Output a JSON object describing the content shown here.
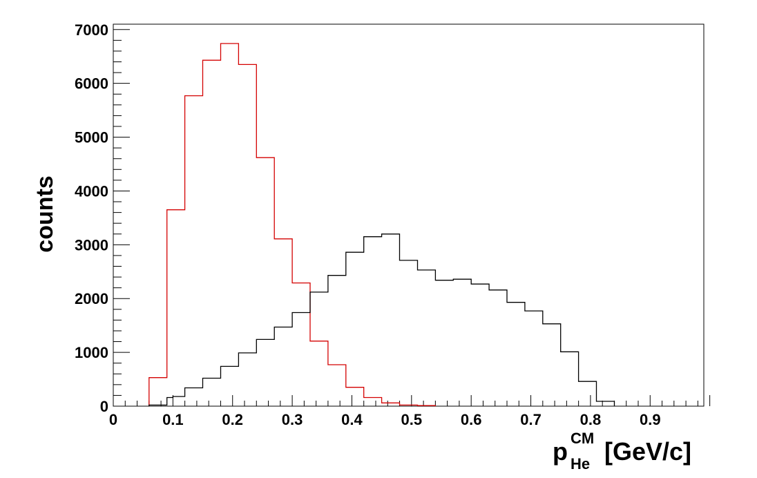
{
  "chart_data": {
    "type": "histogram",
    "ylabel": "counts",
    "xlabel": {
      "main": "p",
      "superscript": "CM",
      "subscript": "He",
      "unit": "[GeV/c]"
    },
    "xlim": [
      0,
      0.99
    ],
    "ylim": [
      0,
      7100
    ],
    "bin_width": 0.03,
    "x_ticks": [
      {
        "value": 0,
        "label": "0"
      },
      {
        "value": 0.1,
        "label": "0.1"
      },
      {
        "value": 0.2,
        "label": "0.2"
      },
      {
        "value": 0.3,
        "label": "0.3"
      },
      {
        "value": 0.4,
        "label": "0.4"
      },
      {
        "value": 0.5,
        "label": "0.5"
      },
      {
        "value": 0.6,
        "label": "0.6"
      },
      {
        "value": 0.7,
        "label": "0.7"
      },
      {
        "value": 0.8,
        "label": "0.8"
      },
      {
        "value": 0.9,
        "label": "0.9"
      }
    ],
    "y_ticks": [
      {
        "value": 0,
        "label": "0"
      },
      {
        "value": 1000,
        "label": "1000"
      },
      {
        "value": 2000,
        "label": "2000"
      },
      {
        "value": 3000,
        "label": "3000"
      },
      {
        "value": 4000,
        "label": "4000"
      },
      {
        "value": 5000,
        "label": "5000"
      },
      {
        "value": 6000,
        "label": "6000"
      },
      {
        "value": 7000,
        "label": "7000"
      }
    ],
    "x_minor_step": 0.02,
    "y_minor_step": 200,
    "grid": false,
    "series": [
      {
        "color": "#d40000",
        "bins": [
          {
            "low": 0.06,
            "high": 0.09,
            "count": 530
          },
          {
            "low": 0.09,
            "high": 0.12,
            "count": 3650
          },
          {
            "low": 0.12,
            "high": 0.15,
            "count": 5770
          },
          {
            "low": 0.15,
            "high": 0.18,
            "count": 6430
          },
          {
            "low": 0.18,
            "high": 0.21,
            "count": 6740
          },
          {
            "low": 0.21,
            "high": 0.24,
            "count": 6350
          },
          {
            "low": 0.24,
            "high": 0.27,
            "count": 4620
          },
          {
            "low": 0.27,
            "high": 0.3,
            "count": 3110
          },
          {
            "low": 0.3,
            "high": 0.33,
            "count": 2290
          },
          {
            "low": 0.33,
            "high": 0.36,
            "count": 1210
          },
          {
            "low": 0.36,
            "high": 0.39,
            "count": 770
          },
          {
            "low": 0.39,
            "high": 0.42,
            "count": 350
          },
          {
            "low": 0.42,
            "high": 0.45,
            "count": 160
          },
          {
            "low": 0.45,
            "high": 0.48,
            "count": 60
          },
          {
            "low": 0.48,
            "high": 0.51,
            "count": 20
          },
          {
            "low": 0.51,
            "high": 0.54,
            "count": 10
          }
        ]
      },
      {
        "color": "#000000",
        "bins": [
          {
            "low": 0.06,
            "high": 0.09,
            "count": 20
          },
          {
            "low": 0.09,
            "high": 0.1,
            "count": 160
          },
          {
            "low": 0.1,
            "high": 0.12,
            "count": 180
          },
          {
            "low": 0.12,
            "high": 0.15,
            "count": 340
          },
          {
            "low": 0.15,
            "high": 0.18,
            "count": 520
          },
          {
            "low": 0.18,
            "high": 0.21,
            "count": 740
          },
          {
            "low": 0.21,
            "high": 0.24,
            "count": 990
          },
          {
            "low": 0.24,
            "high": 0.27,
            "count": 1240
          },
          {
            "low": 0.27,
            "high": 0.3,
            "count": 1470
          },
          {
            "low": 0.3,
            "high": 0.33,
            "count": 1740
          },
          {
            "low": 0.33,
            "high": 0.36,
            "count": 2120
          },
          {
            "low": 0.36,
            "high": 0.39,
            "count": 2430
          },
          {
            "low": 0.39,
            "high": 0.42,
            "count": 2860
          },
          {
            "low": 0.42,
            "high": 0.45,
            "count": 3150
          },
          {
            "low": 0.45,
            "high": 0.48,
            "count": 3200
          },
          {
            "low": 0.48,
            "high": 0.51,
            "count": 2710
          },
          {
            "low": 0.51,
            "high": 0.54,
            "count": 2530
          },
          {
            "low": 0.54,
            "high": 0.57,
            "count": 2340
          },
          {
            "low": 0.57,
            "high": 0.6,
            "count": 2360
          },
          {
            "low": 0.6,
            "high": 0.63,
            "count": 2270
          },
          {
            "low": 0.63,
            "high": 0.66,
            "count": 2160
          },
          {
            "low": 0.66,
            "high": 0.69,
            "count": 1930
          },
          {
            "low": 0.69,
            "high": 0.72,
            "count": 1770
          },
          {
            "low": 0.72,
            "high": 0.75,
            "count": 1530
          },
          {
            "low": 0.75,
            "high": 0.78,
            "count": 1010
          },
          {
            "low": 0.78,
            "high": 0.81,
            "count": 460
          },
          {
            "low": 0.81,
            "high": 0.84,
            "count": 90
          }
        ]
      }
    ]
  }
}
